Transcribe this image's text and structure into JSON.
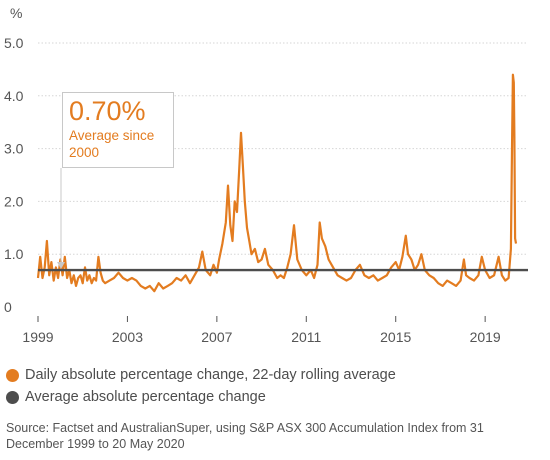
{
  "chart_data": {
    "type": "line",
    "ylabel": "%",
    "ylim": [
      0,
      5.0
    ],
    "yticks": [
      "0",
      "1.0",
      "2.0",
      "3.0",
      "4.0",
      "5.0"
    ],
    "xlim": [
      1999,
      2020.38
    ],
    "xticks": [
      "1999",
      "2003",
      "2007",
      "2011",
      "2015",
      "2019"
    ],
    "grid": true,
    "average_line": 0.7,
    "callout": {
      "value": "0.70%",
      "text_line1": "Average since",
      "text_line2": "2000"
    },
    "series": [
      {
        "name": "Daily absolute percentage change, 22-day rolling average",
        "color": "#e37c20",
        "points": [
          [
            1999.0,
            0.55
          ],
          [
            1999.1,
            0.95
          ],
          [
            1999.2,
            0.55
          ],
          [
            1999.3,
            0.75
          ],
          [
            1999.4,
            1.25
          ],
          [
            1999.5,
            0.6
          ],
          [
            1999.6,
            0.85
          ],
          [
            1999.7,
            0.5
          ],
          [
            1999.8,
            0.75
          ],
          [
            1999.9,
            0.55
          ],
          [
            2000.0,
            0.9
          ],
          [
            2000.1,
            0.6
          ],
          [
            2000.2,
            0.95
          ],
          [
            2000.3,
            0.55
          ],
          [
            2000.4,
            0.7
          ],
          [
            2000.5,
            0.45
          ],
          [
            2000.6,
            0.6
          ],
          [
            2000.7,
            0.4
          ],
          [
            2000.8,
            0.55
          ],
          [
            2000.9,
            0.6
          ],
          [
            2001.0,
            0.45
          ],
          [
            2001.1,
            0.75
          ],
          [
            2001.2,
            0.5
          ],
          [
            2001.3,
            0.6
          ],
          [
            2001.4,
            0.45
          ],
          [
            2001.5,
            0.55
          ],
          [
            2001.6,
            0.5
          ],
          [
            2001.7,
            0.95
          ],
          [
            2001.8,
            0.65
          ],
          [
            2001.9,
            0.5
          ],
          [
            2002.0,
            0.45
          ],
          [
            2002.2,
            0.5
          ],
          [
            2002.4,
            0.55
          ],
          [
            2002.6,
            0.65
          ],
          [
            2002.8,
            0.55
          ],
          [
            2003.0,
            0.5
          ],
          [
            2003.2,
            0.55
          ],
          [
            2003.4,
            0.5
          ],
          [
            2003.6,
            0.4
          ],
          [
            2003.8,
            0.35
          ],
          [
            2004.0,
            0.4
          ],
          [
            2004.2,
            0.3
          ],
          [
            2004.4,
            0.45
          ],
          [
            2004.6,
            0.35
          ],
          [
            2004.8,
            0.4
          ],
          [
            2005.0,
            0.45
          ],
          [
            2005.2,
            0.55
          ],
          [
            2005.4,
            0.5
          ],
          [
            2005.6,
            0.6
          ],
          [
            2005.8,
            0.45
          ],
          [
            2006.0,
            0.6
          ],
          [
            2006.2,
            0.75
          ],
          [
            2006.35,
            1.05
          ],
          [
            2006.5,
            0.7
          ],
          [
            2006.7,
            0.6
          ],
          [
            2006.85,
            0.8
          ],
          [
            2007.0,
            0.65
          ],
          [
            2007.1,
            0.9
          ],
          [
            2007.25,
            1.2
          ],
          [
            2007.4,
            1.6
          ],
          [
            2007.5,
            2.3
          ],
          [
            2007.6,
            1.55
          ],
          [
            2007.7,
            1.25
          ],
          [
            2007.8,
            2.0
          ],
          [
            2007.9,
            1.8
          ],
          [
            2008.0,
            2.6
          ],
          [
            2008.08,
            3.3
          ],
          [
            2008.16,
            2.7
          ],
          [
            2008.25,
            2.0
          ],
          [
            2008.35,
            1.5
          ],
          [
            2008.45,
            1.25
          ],
          [
            2008.55,
            1.0
          ],
          [
            2008.7,
            1.1
          ],
          [
            2008.85,
            0.85
          ],
          [
            2009.0,
            0.9
          ],
          [
            2009.15,
            1.1
          ],
          [
            2009.3,
            0.8
          ],
          [
            2009.5,
            0.7
          ],
          [
            2009.7,
            0.55
          ],
          [
            2009.85,
            0.6
          ],
          [
            2010.0,
            0.55
          ],
          [
            2010.15,
            0.75
          ],
          [
            2010.3,
            1.0
          ],
          [
            2010.45,
            1.55
          ],
          [
            2010.6,
            0.9
          ],
          [
            2010.8,
            0.7
          ],
          [
            2011.0,
            0.6
          ],
          [
            2011.2,
            0.7
          ],
          [
            2011.35,
            0.55
          ],
          [
            2011.5,
            0.8
          ],
          [
            2011.6,
            1.6
          ],
          [
            2011.7,
            1.3
          ],
          [
            2011.85,
            1.15
          ],
          [
            2012.0,
            0.9
          ],
          [
            2012.2,
            0.75
          ],
          [
            2012.4,
            0.6
          ],
          [
            2012.6,
            0.55
          ],
          [
            2012.8,
            0.5
          ],
          [
            2013.0,
            0.55
          ],
          [
            2013.2,
            0.7
          ],
          [
            2013.4,
            0.8
          ],
          [
            2013.6,
            0.6
          ],
          [
            2013.8,
            0.55
          ],
          [
            2014.0,
            0.6
          ],
          [
            2014.2,
            0.5
          ],
          [
            2014.4,
            0.55
          ],
          [
            2014.6,
            0.6
          ],
          [
            2014.8,
            0.75
          ],
          [
            2015.0,
            0.85
          ],
          [
            2015.15,
            0.7
          ],
          [
            2015.3,
            0.95
          ],
          [
            2015.45,
            1.35
          ],
          [
            2015.55,
            1.0
          ],
          [
            2015.7,
            0.9
          ],
          [
            2015.85,
            0.7
          ],
          [
            2016.0,
            0.8
          ],
          [
            2016.15,
            1.0
          ],
          [
            2016.3,
            0.7
          ],
          [
            2016.5,
            0.6
          ],
          [
            2016.7,
            0.55
          ],
          [
            2016.9,
            0.45
          ],
          [
            2017.1,
            0.4
          ],
          [
            2017.3,
            0.5
          ],
          [
            2017.5,
            0.45
          ],
          [
            2017.7,
            0.4
          ],
          [
            2017.9,
            0.5
          ],
          [
            2018.05,
            0.9
          ],
          [
            2018.15,
            0.6
          ],
          [
            2018.3,
            0.55
          ],
          [
            2018.5,
            0.5
          ],
          [
            2018.7,
            0.6
          ],
          [
            2018.85,
            0.95
          ],
          [
            2019.0,
            0.7
          ],
          [
            2019.2,
            0.55
          ],
          [
            2019.4,
            0.6
          ],
          [
            2019.6,
            0.95
          ],
          [
            2019.75,
            0.6
          ],
          [
            2019.9,
            0.5
          ],
          [
            2020.05,
            0.55
          ],
          [
            2020.15,
            1.1
          ],
          [
            2020.2,
            3.0
          ],
          [
            2020.24,
            4.4
          ],
          [
            2020.28,
            4.25
          ],
          [
            2020.31,
            3.2
          ],
          [
            2020.34,
            1.3
          ],
          [
            2020.38,
            1.2
          ]
        ]
      },
      {
        "name": "Average absolute percentage change",
        "color": "#4d4d4d"
      }
    ]
  },
  "source_text": "Source: Factset and AustralianSuper, using S&P ASX 300 Accumulation Index from 31 December 1999 to 20 May 2020"
}
